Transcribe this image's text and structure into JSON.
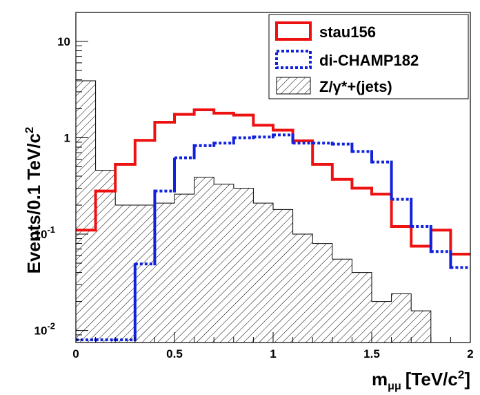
{
  "chart_data": {
    "type": "histogram",
    "xlabel_main": "m",
    "xlabel_sub": "μμ",
    "xlabel_unit": "[TeV/c",
    "xlabel_exp": "2",
    "xlabel_close": "]",
    "ylabel_main": "Events/0.1 TeV/c",
    "ylabel_exp": "2",
    "x_range": [
      0,
      2
    ],
    "y_range": [
      0.0075,
      20
    ],
    "y_scale": "log",
    "bin_edges": [
      0,
      0.1,
      0.2,
      0.3,
      0.4,
      0.5,
      0.6,
      0.7,
      0.8,
      0.9,
      1.0,
      1.1,
      1.2,
      1.3,
      1.4,
      1.5,
      1.6,
      1.7,
      1.8,
      1.9,
      2.0
    ],
    "x_ticks": [
      {
        "value": 0,
        "label": "0"
      },
      {
        "value": 0.5,
        "label": "0.5"
      },
      {
        "value": 1,
        "label": "1"
      },
      {
        "value": 1.5,
        "label": "1.5"
      },
      {
        "value": 2,
        "label": "2"
      }
    ],
    "y_ticks": [
      {
        "value": 10,
        "base": "10",
        "exp": ""
      },
      {
        "value": 1,
        "base": "1",
        "exp": ""
      },
      {
        "value": 0.1,
        "base": "10",
        "exp": "-1"
      },
      {
        "value": 0.01,
        "base": "10",
        "exp": "-2"
      }
    ],
    "legend_position": "top-right",
    "series": [
      {
        "name": "Z/γ*+(jets)",
        "style": "hatched",
        "color": "#000000",
        "values": [
          3.9,
          0.46,
          0.2,
          0.2,
          0.21,
          0.26,
          0.39,
          0.33,
          0.3,
          0.21,
          0.18,
          0.1,
          0.08,
          0.055,
          0.04,
          0.02,
          0.024,
          0.016,
          0.0075,
          0.0075
        ]
      },
      {
        "name": "stau156",
        "style": "solid",
        "color": "#ee1111",
        "values": [
          0.11,
          0.28,
          0.53,
          0.94,
          1.45,
          1.75,
          1.95,
          1.8,
          1.72,
          1.35,
          1.2,
          0.93,
          0.53,
          0.37,
          0.3,
          0.26,
          0.12,
          0.075,
          0.11,
          0.062
        ]
      },
      {
        "name": "di-CHAMP182",
        "style": "dotted",
        "color": "#1122dd",
        "values": [
          0.008,
          0.008,
          0.008,
          0.049,
          0.28,
          0.62,
          0.83,
          0.88,
          1.0,
          1.02,
          1.07,
          0.88,
          0.88,
          0.86,
          0.72,
          0.56,
          0.23,
          0.12,
          0.066,
          0.045
        ]
      }
    ]
  }
}
